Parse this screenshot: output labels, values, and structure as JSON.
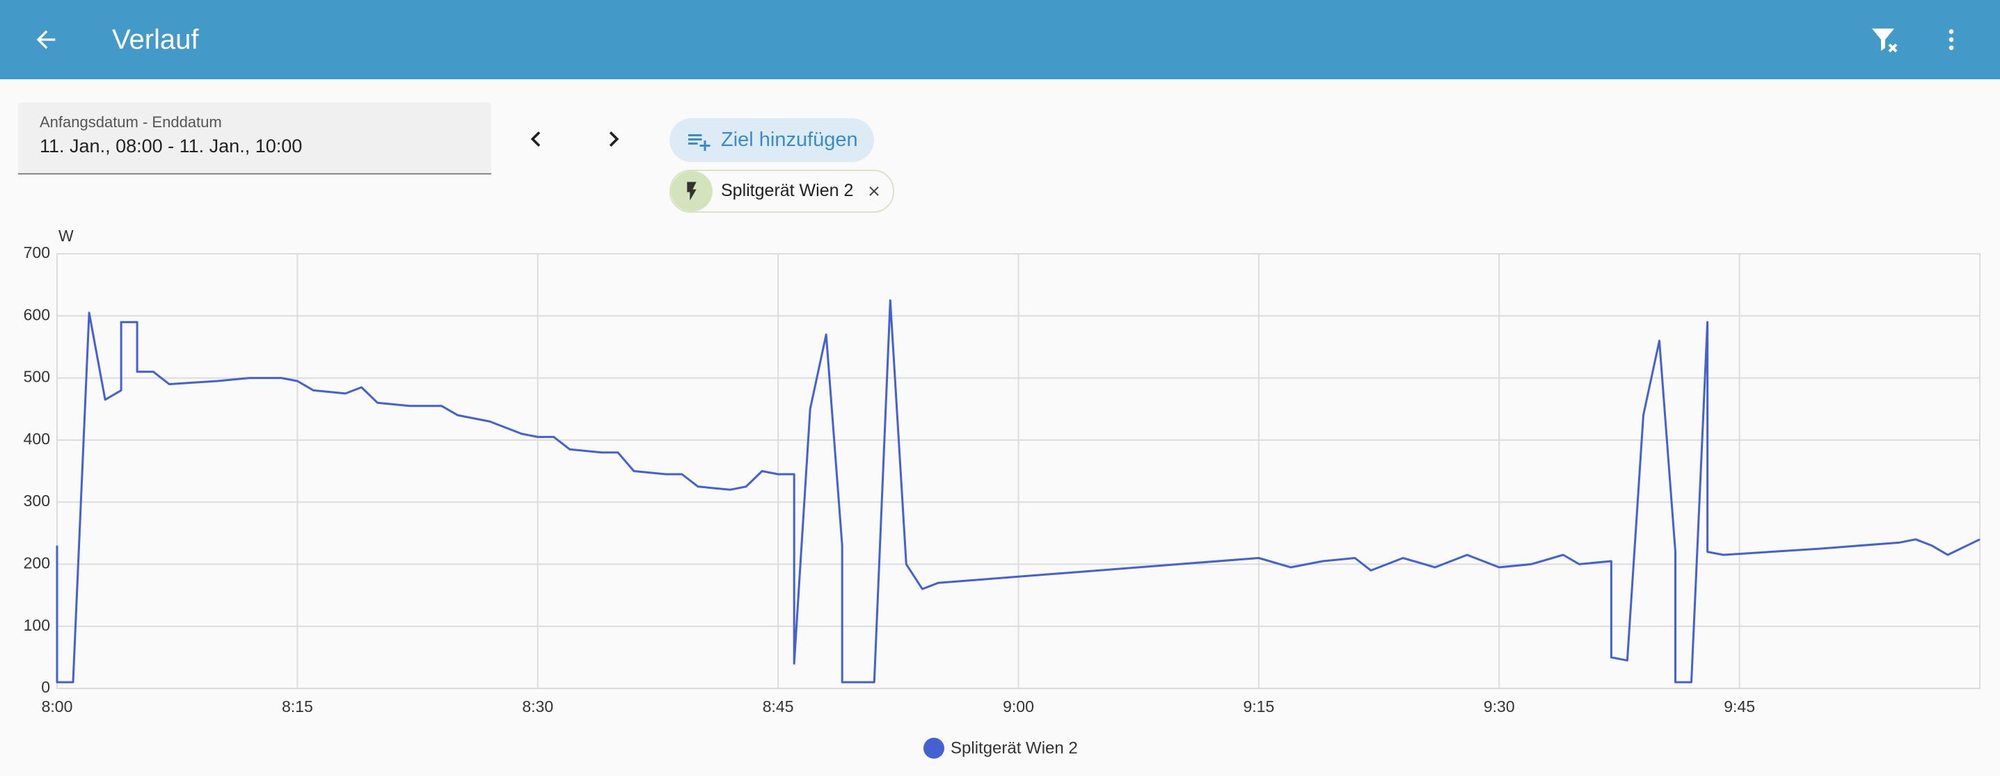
{
  "header": {
    "title": "Verlauf"
  },
  "date_range": {
    "label": "Anfangsdatum - Enddatum",
    "value": "11. Jan., 08:00 - 11. Jan., 10:00"
  },
  "add_target": {
    "label": "Ziel hinzufügen"
  },
  "target_chip": {
    "label": "Splitgerät Wien 2"
  },
  "chart_data": {
    "type": "line",
    "y_label": "W",
    "x": [
      "8:00",
      "8:00",
      "8:01",
      "8:02",
      "8:03",
      "8:04",
      "8:04",
      "8:05",
      "8:05",
      "8:06",
      "8:07",
      "8:10",
      "8:12",
      "8:14",
      "8:15",
      "8:16",
      "8:18",
      "8:19",
      "8:20",
      "8:22",
      "8:24",
      "8:25",
      "8:27",
      "8:29",
      "8:30",
      "8:31",
      "8:32",
      "8:34",
      "8:35",
      "8:36",
      "8:38",
      "8:39",
      "8:40",
      "8:42",
      "8:43",
      "8:44",
      "8:45",
      "8:46",
      "8:46",
      "8:47",
      "8:48",
      "8:49",
      "8:49",
      "8:51",
      "8:52",
      "8:53",
      "8:54",
      "8:55",
      "9:00",
      "9:05",
      "9:10",
      "9:15",
      "9:17",
      "9:19",
      "9:21",
      "9:22",
      "9:24",
      "9:26",
      "9:28",
      "9:30",
      "9:32",
      "9:34",
      "9:35",
      "9:37",
      "9:37",
      "9:38",
      "9:39",
      "9:40",
      "9:41",
      "9:41",
      "9:42",
      "9:43",
      "9:43",
      "9:44",
      "9:50",
      "9:55",
      "9:56",
      "9:57",
      "9:58",
      "10:00"
    ],
    "series": [
      {
        "name": "Splitgerät Wien 2",
        "color": "#4361d0",
        "values": [
          230,
          10,
          10,
          605,
          465,
          480,
          590,
          590,
          510,
          510,
          490,
          495,
          500,
          500,
          495,
          480,
          475,
          485,
          460,
          455,
          455,
          440,
          430,
          410,
          405,
          405,
          385,
          380,
          380,
          350,
          345,
          345,
          325,
          320,
          325,
          350,
          345,
          345,
          40,
          450,
          570,
          230,
          10,
          10,
          625,
          200,
          160,
          170,
          180,
          190,
          200,
          210,
          195,
          205,
          210,
          190,
          210,
          195,
          215,
          195,
          200,
          215,
          200,
          205,
          50,
          45,
          440,
          560,
          220,
          10,
          10,
          590,
          220,
          215,
          225,
          235,
          240,
          230,
          215,
          240
        ]
      }
    ],
    "xlim": [
      "8:00",
      "10:00"
    ],
    "xticks": [
      "8:00",
      "8:15",
      "8:30",
      "8:45",
      "9:00",
      "9:15",
      "9:30",
      "9:45"
    ],
    "ylim": [
      0,
      700
    ],
    "yticks": [
      0,
      100,
      200,
      300,
      400,
      500,
      600,
      700
    ],
    "grid": true
  }
}
